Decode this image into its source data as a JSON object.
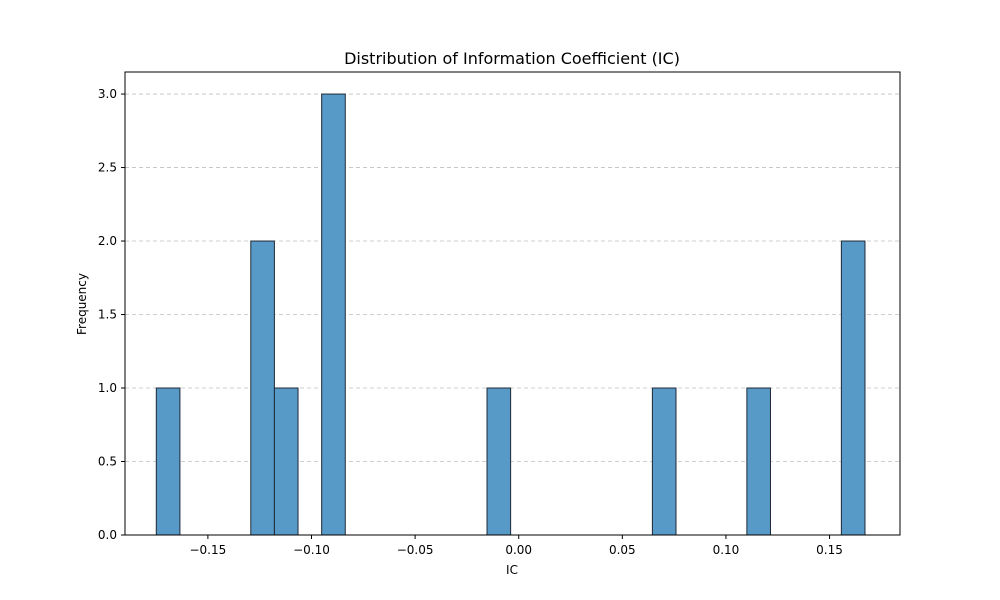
{
  "chart_data": {
    "type": "bar",
    "title": "Distribution of Information Coefficient (IC)",
    "xlabel": "IC",
    "ylabel": "Frequency",
    "xlim": [
      -0.19,
      0.184
    ],
    "ylim": [
      0,
      3.15
    ],
    "x_ticks": [
      -0.15,
      -0.1,
      -0.05,
      0.0,
      0.05,
      0.1,
      0.15
    ],
    "x_tick_labels": [
      "−0.15",
      "−0.10",
      "−0.05",
      "0.00",
      "0.05",
      "0.10",
      "0.15"
    ],
    "y_ticks": [
      0.0,
      0.5,
      1.0,
      1.5,
      2.0,
      2.5,
      3.0
    ],
    "y_tick_labels": [
      "0.0",
      "0.5",
      "1.0",
      "1.5",
      "2.0",
      "2.5",
      "3.0"
    ],
    "grid": "y-axis dashed",
    "bar_color": "#5799c7",
    "bar_edge_color": "#1f2a36",
    "bin_width": 0.0114,
    "bins": [
      {
        "x0": -0.1749,
        "x1": -0.1635,
        "count": 1
      },
      {
        "x0": -0.1293,
        "x1": -0.1179,
        "count": 2
      },
      {
        "x0": -0.1179,
        "x1": -0.1065,
        "count": 1
      },
      {
        "x0": -0.0951,
        "x1": -0.0837,
        "count": 3
      },
      {
        "x0": -0.0153,
        "x1": -0.0039,
        "count": 1
      },
      {
        "x0": 0.0645,
        "x1": 0.0759,
        "count": 1
      },
      {
        "x0": 0.1101,
        "x1": 0.1215,
        "count": 1
      },
      {
        "x0": 0.1557,
        "x1": 0.1671,
        "count": 2
      }
    ]
  }
}
